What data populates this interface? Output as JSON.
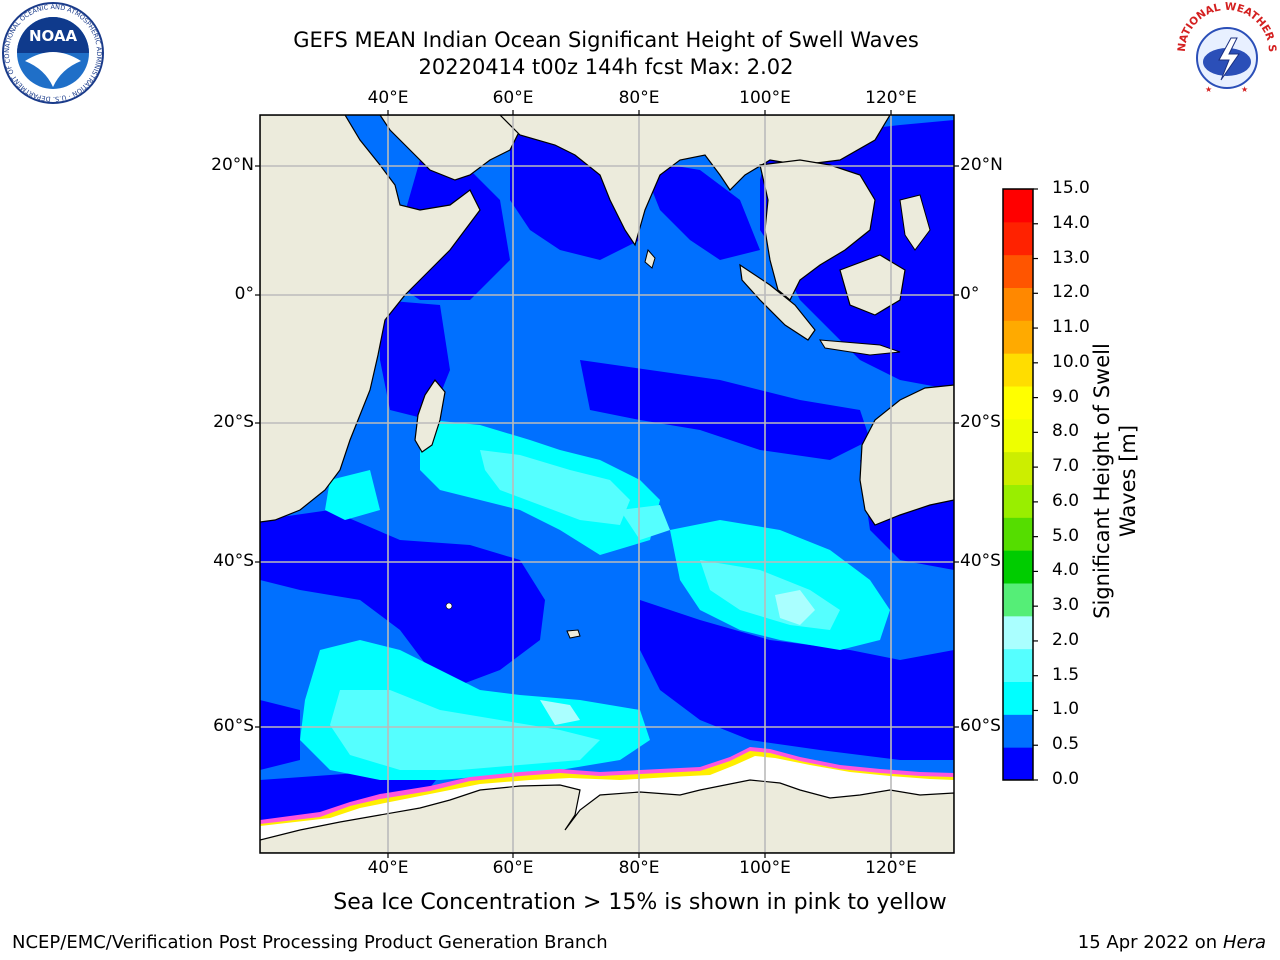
{
  "title": {
    "line1": "GEFS MEAN Indian Ocean Significant Height of Swell Waves",
    "line2": "20220414 t00z 144h fcst   Max: 2.02"
  },
  "map": {
    "lon_labels": [
      "40°E",
      "60°E",
      "80°E",
      "100°E",
      "120°E"
    ],
    "lat_labels_left": [
      "20°N",
      "0°",
      "20°S",
      "40°S",
      "60°S"
    ],
    "lat_labels_right": [
      "20°N",
      "0°",
      "20°S",
      "40°S",
      "60°S"
    ],
    "extent": {
      "lon": [
        20,
        130
      ],
      "lat": [
        -72,
        28
      ]
    },
    "grid": true,
    "land_color": "#ecebdc",
    "ice_note": "Sea Ice Concentration > 15% is shown in pink to yellow"
  },
  "colorbar": {
    "title_line1": "Significant Height of Swell",
    "title_line2": "Waves [m]",
    "ticks": [
      "15.0",
      "14.0",
      "13.0",
      "12.0",
      "11.0",
      "10.0",
      "9.0",
      "8.0",
      "7.0",
      "6.0",
      "5.0",
      "4.0",
      "3.0",
      "2.0",
      "1.5",
      "1.0",
      "0.5",
      "0.0"
    ],
    "colors": [
      "#0000ff",
      "#0070ff",
      "#00ffff",
      "#55ffff",
      "#aaffff",
      "#55ee77",
      "#00cc00",
      "#55dd00",
      "#99ee00",
      "#ccee00",
      "#eeff00",
      "#ffff00",
      "#ffdd00",
      "#ffaa00",
      "#ff8800",
      "#ff5500",
      "#ff2200",
      "#ff0000"
    ]
  },
  "logos": {
    "noaa_text": "NOAA",
    "noaa_ring": "NATIONAL OCEANIC AND ATMOSPHERIC ADMINISTRATION · U.S. DEPARTMENT OF COMMERCE",
    "nws_ring": "NATIONAL WEATHER SERVICE"
  },
  "footer": {
    "left": "NCEP/EMC/Verification Post Processing Product Generation Branch",
    "right_date": "15 Apr 2022 on ",
    "right_machine": "Hera"
  }
}
